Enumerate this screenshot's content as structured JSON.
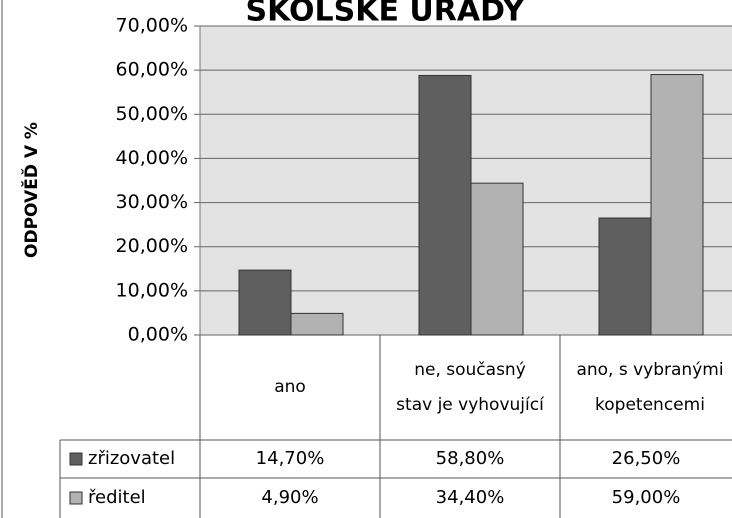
{
  "chart_data": {
    "type": "bar",
    "title": "ŠKOLSKÉ ÚŘADY",
    "y_label": "ODPOVĚĎ V %",
    "categories": [
      "ano",
      "ne, současný stav je vyhovující",
      "ano, s vybranými kopetencemi"
    ],
    "series": [
      {
        "name": "zřizovatel",
        "color": "#5f5f5f",
        "values": [
          14.7,
          58.8,
          26.5
        ],
        "value_labels": [
          "14,70%",
          "58,80%",
          "26,50%"
        ]
      },
      {
        "name": "ředitel",
        "color": "#b2b2b2",
        "values": [
          4.9,
          34.4,
          59.0
        ],
        "value_labels": [
          "4,90%",
          "34,40%",
          "59,00%"
        ]
      }
    ],
    "ylim": [
      0,
      70
    ],
    "yticks": [
      {
        "value": 0,
        "label": "0,00%"
      },
      {
        "value": 10,
        "label": "10,00%"
      },
      {
        "value": 20,
        "label": "20,00%"
      },
      {
        "value": 30,
        "label": "30,00%"
      },
      {
        "value": 40,
        "label": "40,00%"
      },
      {
        "value": 50,
        "label": "50,00%"
      },
      {
        "value": 60,
        "label": "60,00%"
      },
      {
        "value": 70,
        "label": "70,00%"
      }
    ],
    "grid": true,
    "data_table": true
  }
}
